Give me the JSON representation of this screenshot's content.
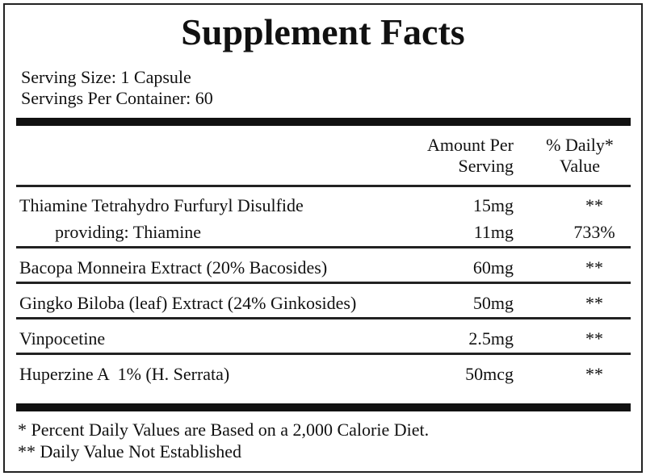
{
  "title": "Supplement Facts",
  "serving": [
    "Serving Size: 1 Capsule",
    "Servings Per Container: 60"
  ],
  "header": {
    "amount": [
      "Amount Per",
      "Serving"
    ],
    "daily_value": [
      "% Daily*",
      "Value"
    ]
  },
  "rows": [
    [
      [
        "Thiamine Tetrahydro Furfuryl Disulfide",
        "15mg",
        "**"
      ],
      [
        "providing: Thiamine",
        "11mg",
        "733%"
      ]
    ],
    [
      [
        "Bacopa Monneira Extract (20% Bacosides)",
        "60mg",
        "**"
      ]
    ],
    [
      [
        "Gingko Biloba (leaf) Extract (24% Ginkosides)",
        "50mg",
        "**"
      ]
    ],
    [
      [
        "Vinpocetine",
        "2.5mg",
        "**"
      ]
    ],
    [
      [
        "Huperzine A  1% (H. Serrata)",
        "50mcg",
        "**"
      ]
    ]
  ],
  "footnotes": [
    "* Percent Daily Values are Based on a 2,000 Calorie Diet.",
    "** Daily Value Not Established"
  ]
}
